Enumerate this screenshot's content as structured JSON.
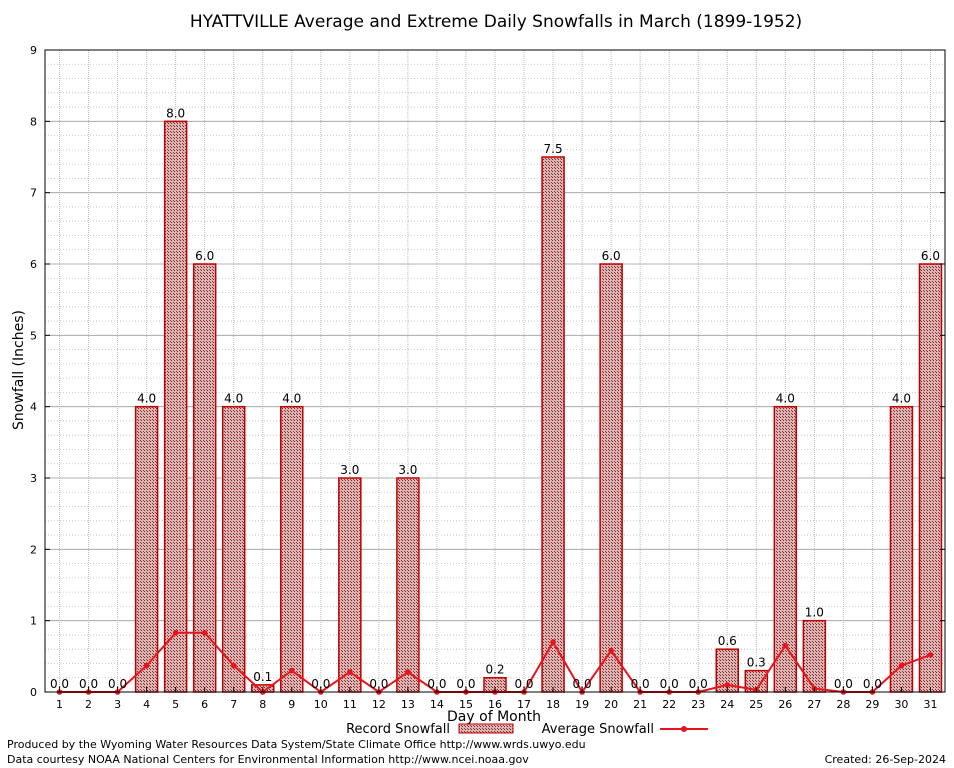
{
  "chart_data": {
    "type": "bar",
    "title": "HYATTVILLE Average and Extreme Daily Snowfalls in March (1899-1952)",
    "xlabel": "Day of Month",
    "ylabel": "Snowfall (Inches)",
    "ylim": [
      0,
      9
    ],
    "yticks": [
      "0",
      "1",
      "2",
      "3",
      "4",
      "5",
      "6",
      "7",
      "8",
      "9"
    ],
    "categories": [
      "1",
      "2",
      "3",
      "4",
      "5",
      "6",
      "7",
      "8",
      "9",
      "10",
      "11",
      "12",
      "13",
      "14",
      "15",
      "16",
      "17",
      "18",
      "19",
      "20",
      "21",
      "22",
      "23",
      "24",
      "25",
      "26",
      "27",
      "28",
      "29",
      "30",
      "31"
    ],
    "grid": true,
    "legend_position": "bottom",
    "bar_color": "#c00000",
    "line_color": "#e8141c",
    "series": [
      {
        "name": "Record Snowfall",
        "type": "bar",
        "values": [
          0.0,
          0.0,
          0.0,
          4.0,
          8.0,
          6.0,
          4.0,
          0.1,
          4.0,
          0.0,
          3.0,
          0.0,
          3.0,
          0.0,
          0.0,
          0.2,
          0.0,
          7.5,
          0.0,
          6.0,
          0.0,
          0.0,
          0.0,
          0.6,
          0.3,
          4.0,
          1.0,
          0.0,
          0.0,
          4.0,
          6.0
        ],
        "labels": [
          "0.0",
          "0.0",
          "0.0",
          "4.0",
          "8.0",
          "6.0",
          "4.0",
          "0.1",
          "4.0",
          "0.0",
          "3.0",
          "0.0",
          "3.0",
          "0.0",
          "0.0",
          "0.2",
          "0.0",
          "7.5",
          "0.0",
          "6.0",
          "0.0",
          "0.0",
          "0.0",
          "0.6",
          "0.3",
          "4.0",
          "1.0",
          "0.0",
          "0.0",
          "4.0",
          "6.0"
        ]
      },
      {
        "name": "Average Snowfall",
        "type": "line",
        "values": [
          0.0,
          0.0,
          0.0,
          0.37,
          0.83,
          0.83,
          0.37,
          0.0,
          0.3,
          0.0,
          0.28,
          0.0,
          0.28,
          0.0,
          0.0,
          0.0,
          0.0,
          0.7,
          0.0,
          0.58,
          0.0,
          0.0,
          0.0,
          0.1,
          0.03,
          0.65,
          0.05,
          0.0,
          0.0,
          0.37,
          0.52
        ]
      }
    ]
  },
  "footer": {
    "produced_by": "Produced by the Wyoming Water Resources Data System/State Climate Office http://www.wrds.uwyo.edu",
    "data_courtesy": "Data courtesy NOAA National Centers for Environmental Information http://www.ncei.noaa.gov",
    "created": "Created: 26-Sep-2024"
  }
}
